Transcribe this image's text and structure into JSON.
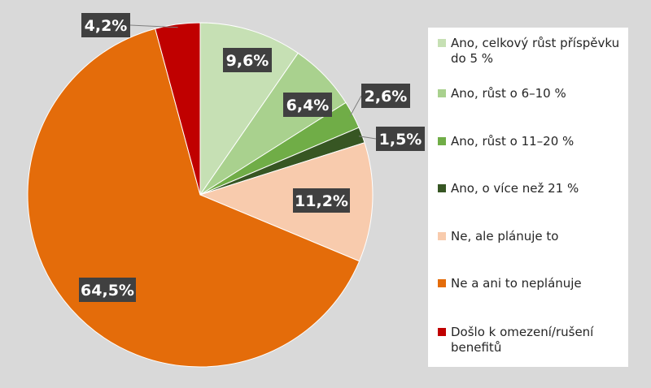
{
  "chart_data": {
    "type": "pie",
    "title": "",
    "start_angle_deg": 0,
    "direction": "clockwise",
    "series": [
      {
        "name": "Ano, celkový růst příspěvku do 5 %",
        "value": 9.6,
        "label": "9,6%",
        "color": "#C6E0B4"
      },
      {
        "name": "Ano, růst o 6–10 %",
        "value": 6.4,
        "label": "6,4%",
        "color": "#A9D18E"
      },
      {
        "name": "Ano, růst o 11–20 %",
        "value": 2.6,
        "label": "2,6%",
        "color": "#70AD47"
      },
      {
        "name": "Ano, o více než 21 %",
        "value": 1.5,
        "label": "1,5%",
        "color": "#375623"
      },
      {
        "name": "Ne, ale plánuje to",
        "value": 11.2,
        "label": "11,2%",
        "color": "#F8CBAD"
      },
      {
        "name": "Ne a ani to neplánuje",
        "value": 64.5,
        "label": "64,5%",
        "color": "#E46C0A"
      },
      {
        "name": "Došlo k omezení/rušení benefitů",
        "value": 4.2,
        "label": "4,2%",
        "color": "#C00000"
      }
    ],
    "legend_position": "right"
  },
  "colors": {
    "background": "#D9D9D9",
    "label_box": "#404040",
    "label_text": "#FFFFFF",
    "slice_border": "#FFFFFF"
  }
}
